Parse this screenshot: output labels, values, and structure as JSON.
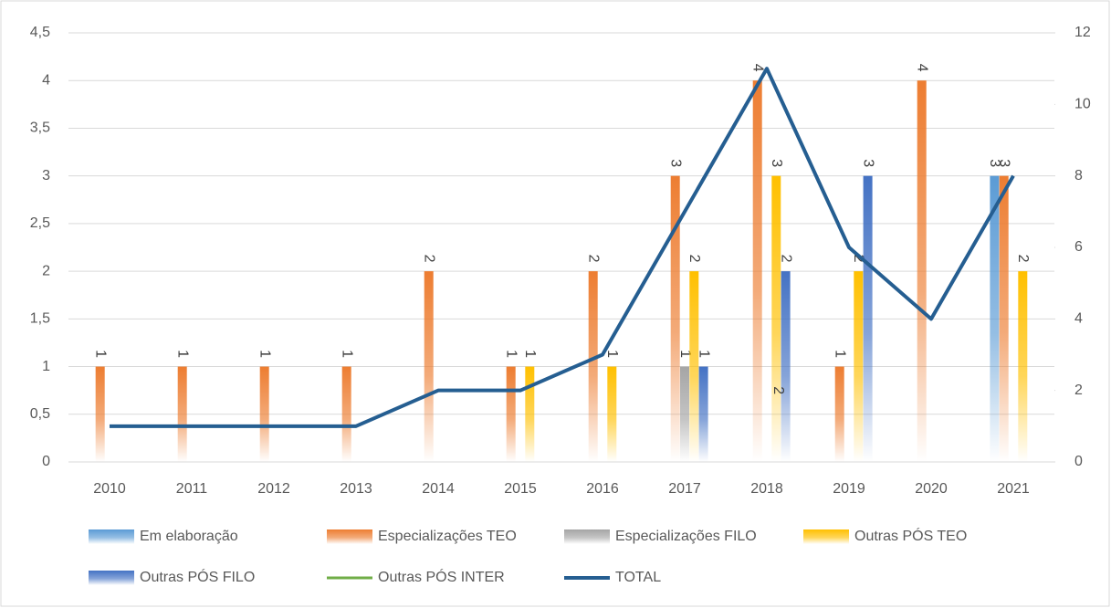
{
  "chart_data": {
    "type": "bar",
    "categories": [
      "2010",
      "2011",
      "2012",
      "2013",
      "2014",
      "2015",
      "2016",
      "2017",
      "2018",
      "2019",
      "2020",
      "2021"
    ],
    "series": [
      {
        "name": "Em elaboração",
        "color": "#5b9bd5",
        "type": "bar",
        "values": [
          null,
          null,
          null,
          null,
          null,
          null,
          null,
          null,
          null,
          null,
          null,
          3
        ]
      },
      {
        "name": "Especializações TEO",
        "color": "#ed7d31",
        "type": "bar",
        "values": [
          1,
          1,
          1,
          1,
          2,
          1,
          2,
          3,
          4,
          1,
          4,
          3
        ]
      },
      {
        "name": "Especializações FILO",
        "color": "#a5a5a5",
        "type": "bar",
        "values": [
          null,
          null,
          null,
          null,
          null,
          null,
          null,
          1,
          null,
          null,
          null,
          null
        ]
      },
      {
        "name": "Outras PÓS TEO",
        "color": "#ffc000",
        "type": "bar",
        "values": [
          null,
          null,
          null,
          null,
          null,
          1,
          1,
          2,
          3,
          2,
          null,
          2
        ]
      },
      {
        "name": "Outras PÓS FILO",
        "color": "#4472c4",
        "type": "bar",
        "values": [
          null,
          null,
          null,
          null,
          null,
          null,
          null,
          1,
          2,
          3,
          null,
          null
        ]
      },
      {
        "name": "Outras PÓS INTER",
        "color": "#70ad47",
        "type": "line",
        "axis": "y2",
        "values": [
          null,
          null,
          null,
          null,
          null,
          null,
          null,
          null,
          2,
          null,
          null,
          null
        ]
      },
      {
        "name": "TOTAL",
        "color": "#255e91",
        "type": "line",
        "axis": "y2",
        "values": [
          1,
          1,
          1,
          1,
          2,
          2,
          3,
          7,
          11,
          6,
          4,
          8
        ]
      }
    ],
    "ylim": [
      0,
      4.5
    ],
    "yticks": [
      0,
      {
        "value": 0.5,
        "label": "0,5"
      },
      1,
      {
        "value": 1.5,
        "label": "1,5"
      },
      2,
      {
        "value": 2.5,
        "label": "2,5"
      },
      3,
      {
        "value": 3.5,
        "label": "3,5"
      },
      4,
      {
        "value": 4.5,
        "label": "4,5"
      }
    ],
    "y2lim": [
      0,
      12
    ],
    "y2ticks": [
      0,
      2,
      4,
      6,
      8,
      10,
      12
    ],
    "grid": true
  }
}
